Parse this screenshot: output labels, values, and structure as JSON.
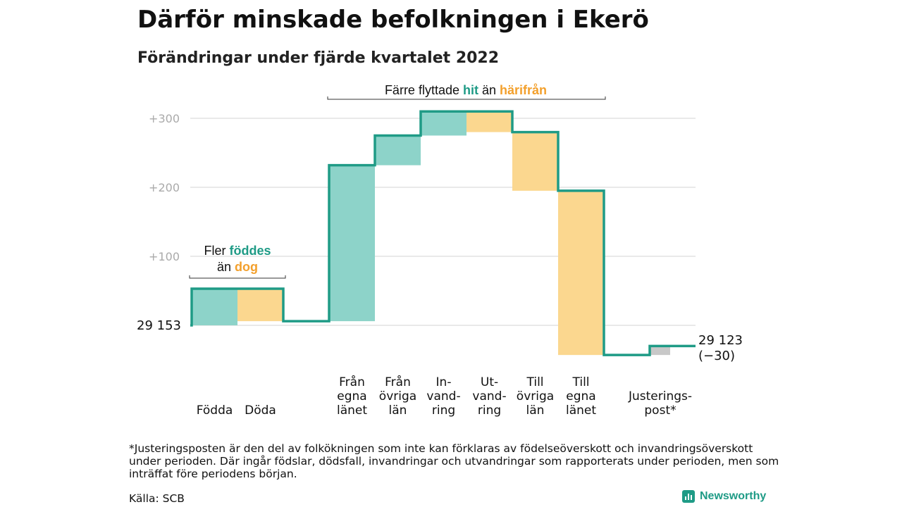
{
  "title": "Därför minskade befolkningen i Ekerö",
  "subtitle": "Förändringar under fjärde kvartalet 2022",
  "colors": {
    "increase_fill": "#8dd3c9",
    "decrease_fill": "#fbd78f",
    "adjustment_fill": "#c8c8c8",
    "step_line": "#1f9b86",
    "highlight_teal": "#1f9b86",
    "highlight_orange": "#f3a02c",
    "grid": "#e2e2e2",
    "tick_label": "#aaaaaa"
  },
  "annotations": {
    "births_deaths": {
      "line1_prefix": "Fler ",
      "line1_highlight": "föddes",
      "line2_prefix": "än ",
      "line2_highlight": "dog"
    },
    "migration": {
      "prefix": "Färre flyttade ",
      "highlight1": "hit",
      "middle": " än ",
      "highlight2": "härifrån"
    }
  },
  "chart_data": {
    "type": "waterfall",
    "baseline": 29153,
    "start_label": "29 153",
    "end_label_lines": [
      "29 123",
      "(−30)"
    ],
    "y_ticks": [
      {
        "value": 100,
        "label": "+100"
      },
      {
        "value": 200,
        "label": "+200"
      },
      {
        "value": 300,
        "label": "+300"
      }
    ],
    "ylim": [
      -50,
      320
    ],
    "categories": [
      {
        "lines": [
          "Födda"
        ],
        "start": 0,
        "end": 53,
        "kind": "increase"
      },
      {
        "lines": [
          "Döda"
        ],
        "start": 53,
        "end": 6,
        "kind": "decrease"
      },
      {
        "lines": [
          "Från",
          "egna",
          "länet"
        ],
        "start": 6,
        "end": 232,
        "kind": "increase"
      },
      {
        "lines": [
          "Från",
          "övriga",
          "län"
        ],
        "start": 232,
        "end": 275,
        "kind": "increase"
      },
      {
        "lines": [
          "In-",
          "vand-",
          "ring"
        ],
        "start": 275,
        "end": 310,
        "kind": "increase"
      },
      {
        "lines": [
          "Ut-",
          "vand-",
          "ring"
        ],
        "start": 310,
        "end": 280,
        "kind": "decrease"
      },
      {
        "lines": [
          "Till",
          "övriga",
          "län"
        ],
        "start": 280,
        "end": 195,
        "kind": "decrease"
      },
      {
        "lines": [
          "Till",
          "egna",
          "länet"
        ],
        "start": 195,
        "end": -43,
        "kind": "decrease"
      },
      {
        "lines": [
          "Justerings-",
          "post*"
        ],
        "start": -43,
        "end": -30,
        "kind": "adjustment"
      }
    ]
  },
  "footnote": "*Justeringsposten är den del av folkökningen som inte kan förklaras av födelseöverskott och invandringsöverskott under perioden. Där ingår födslar, dödsfall, invandringar och utvandringar som rapporterats under perioden, men som inträffat före periodens början.",
  "source": "Källa: SCB",
  "brand": {
    "name": "Newsworthy",
    "icon": "bar-chart-icon"
  }
}
